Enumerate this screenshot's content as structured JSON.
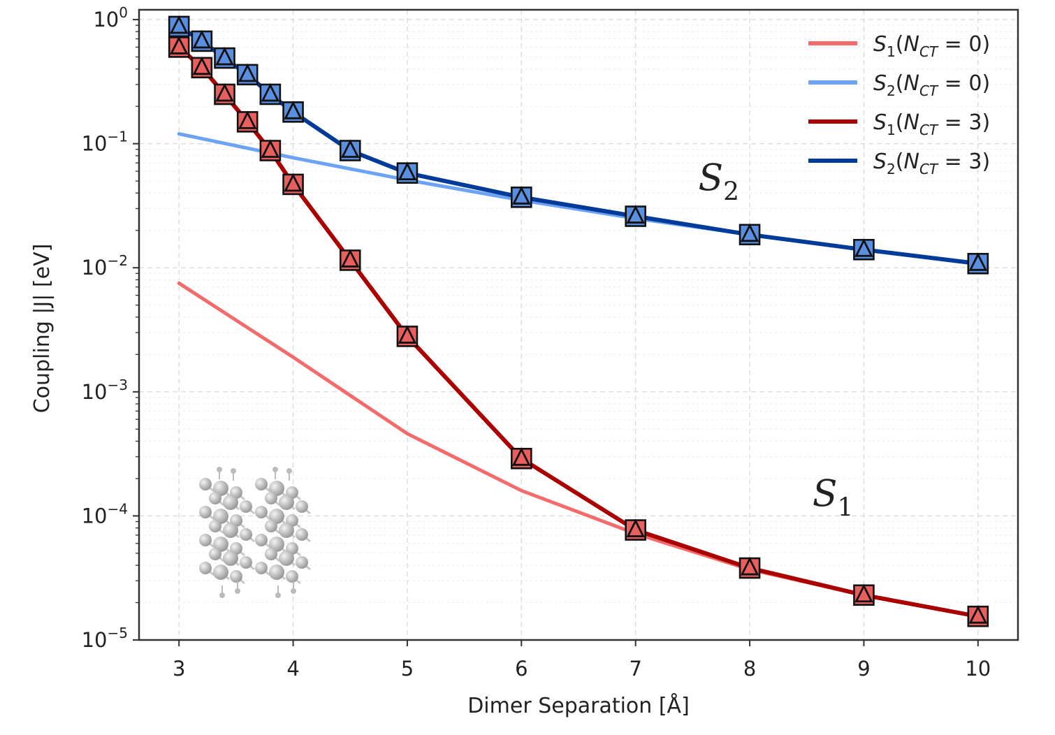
{
  "chart_data": {
    "type": "line",
    "yscale": "log",
    "xlabel": "Dimer Separation [Å]",
    "ylabel": "Coupling |J| [eV]",
    "xlim": [
      2.65,
      10.35
    ],
    "ylim": [
      1e-05,
      1.2
    ],
    "grid": true,
    "legend_position": "top-right",
    "x_ticks": [
      3,
      4,
      5,
      6,
      7,
      8,
      9,
      10
    ],
    "y_ticks": [
      {
        "value": 1,
        "base": "10",
        "exp": "0"
      },
      {
        "value": 0.1,
        "base": "10",
        "exp": "−1"
      },
      {
        "value": 0.01,
        "base": "10",
        "exp": "−2"
      },
      {
        "value": 0.001,
        "base": "10",
        "exp": "−3"
      },
      {
        "value": 0.0001,
        "base": "10",
        "exp": "−4"
      },
      {
        "value": 1e-05,
        "base": "10",
        "exp": "−5"
      }
    ],
    "series": [
      {
        "name": "S1(NCT=0)",
        "state": "S",
        "state_sub": "1",
        "nct": "0",
        "color": "#f46b6b",
        "markers": false,
        "x": [
          3,
          4,
          5,
          6,
          7,
          8,
          9,
          10
        ],
        "y": [
          0.0075,
          0.0019,
          0.00046,
          0.00016,
          7.2e-05,
          3.7e-05,
          2.3e-05,
          1.55e-05
        ]
      },
      {
        "name": "S2(NCT=0)",
        "state": "S",
        "state_sub": "2",
        "nct": "0",
        "color": "#6da3f5",
        "markers": false,
        "x": [
          3,
          4,
          5,
          6,
          7,
          8,
          9,
          10
        ],
        "y": [
          0.12,
          0.077,
          0.051,
          0.035,
          0.025,
          0.0185,
          0.014,
          0.0108
        ]
      },
      {
        "name": "S1(NCT=3)",
        "state": "S",
        "state_sub": "1",
        "nct": "3",
        "color": "#aa0000",
        "markers": true,
        "marker_fill": "#e8605e",
        "x": [
          3,
          3.2,
          3.4,
          3.6,
          3.8,
          4,
          4.5,
          5,
          6,
          7,
          8,
          9,
          10
        ],
        "y": [
          0.6,
          0.41,
          0.25,
          0.15,
          0.088,
          0.047,
          0.0115,
          0.0028,
          0.00029,
          7.7e-05,
          3.8e-05,
          2.3e-05,
          1.55e-05
        ]
      },
      {
        "name": "S2(NCT=3)",
        "state": "S",
        "state_sub": "2",
        "nct": "3",
        "color": "#003b9a",
        "markers": true,
        "marker_fill": "#5a8fe0",
        "x": [
          3,
          3.2,
          3.4,
          3.6,
          3.8,
          4,
          4.5,
          5,
          6,
          7,
          8,
          9,
          10
        ],
        "y": [
          0.88,
          0.67,
          0.49,
          0.36,
          0.25,
          0.18,
          0.088,
          0.058,
          0.037,
          0.026,
          0.0185,
          0.014,
          0.0108
        ]
      }
    ],
    "annotations": [
      {
        "base": "S",
        "sub": "2",
        "x": 7.55,
        "y": 0.042
      },
      {
        "base": "S",
        "sub": "1",
        "x": 8.55,
        "y": 0.00012
      }
    ]
  }
}
